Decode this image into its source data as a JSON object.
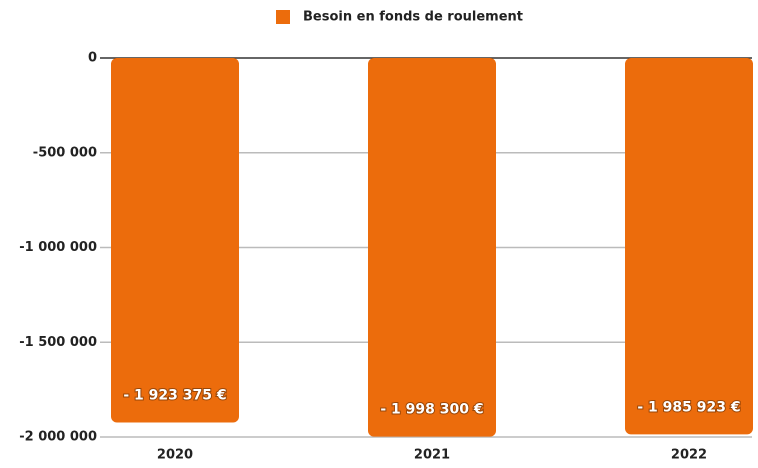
{
  "chart_data": {
    "type": "bar",
    "legend": "Besoin en fonds de roulement",
    "categories": [
      "2020",
      "2021",
      "2022"
    ],
    "values": [
      -1923375,
      -1998300,
      -1985923
    ],
    "value_labels": [
      "- 1 923 375 €",
      "- 1 998 300 €",
      "- 1 985 923 €"
    ],
    "color": "#ec6c0c",
    "ylim": [
      -2000000,
      0
    ],
    "yticks": [
      0,
      {
        "value": -500000,
        "label": "-500 000"
      },
      {
        "value": -1000000,
        "label": "-1 000 000"
      },
      {
        "value": -1500000,
        "label": "-1 500 000"
      },
      {
        "value": -2000000,
        "label": "-2 000 000"
      }
    ],
    "grid": true
  }
}
